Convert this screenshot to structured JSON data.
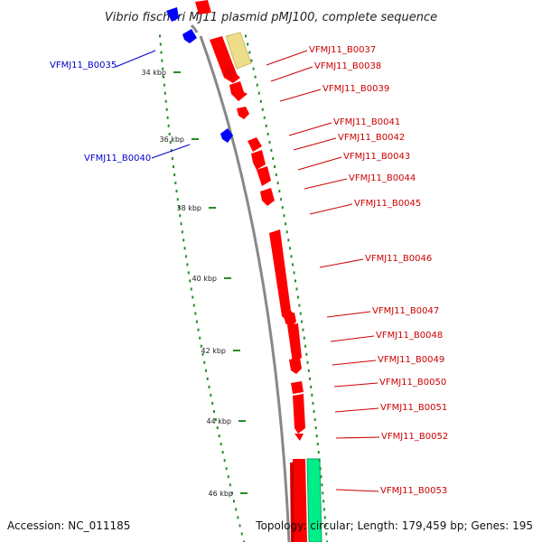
{
  "title": "Vibrio fischeri MJ11 plasmid pMJ100, complete sequence",
  "footer": {
    "accession": "Accession: NC_011185",
    "topology": "Topology: circular; Length: 179,459 bp; Genes: 195"
  },
  "colors": {
    "forward_gene": "#ff0000",
    "reverse_gene": "#0000ff",
    "rna_gene": "#00ee88",
    "other_feature": "#eedd88",
    "backbone": "#888888",
    "ruler_dots": "#2a8a2a",
    "forward_label": "#cc0000",
    "reverse_label": "#0000cc"
  },
  "ruler": {
    "unit": "kbp",
    "ticks": [
      "34 kbp",
      "36 kbp",
      "38 kbp",
      "40 kbp",
      "42 kbp",
      "44 kbp",
      "46 kbp"
    ]
  },
  "gene_labels": {
    "B0035": "VFMJ11_B0035",
    "B0037": "VFMJ11_B0037",
    "B0038": "VFMJ11_B0038",
    "B0039": "VFMJ11_B0039",
    "B0040": "VFMJ11_B0040",
    "B0041": "VFMJ11_B0041",
    "B0042": "VFMJ11_B0042",
    "B0043": "VFMJ11_B0043",
    "B0044": "VFMJ11_B0044",
    "B0045": "VFMJ11_B0045",
    "B0046": "VFMJ11_B0046",
    "B0047": "VFMJ11_B0047",
    "B0048": "VFMJ11_B0048",
    "B0049": "VFMJ11_B0049",
    "B0050": "VFMJ11_B0050",
    "B0051": "VFMJ11_B0051",
    "B0052": "VFMJ11_B0052",
    "B0053": "VFMJ11_B0053"
  }
}
